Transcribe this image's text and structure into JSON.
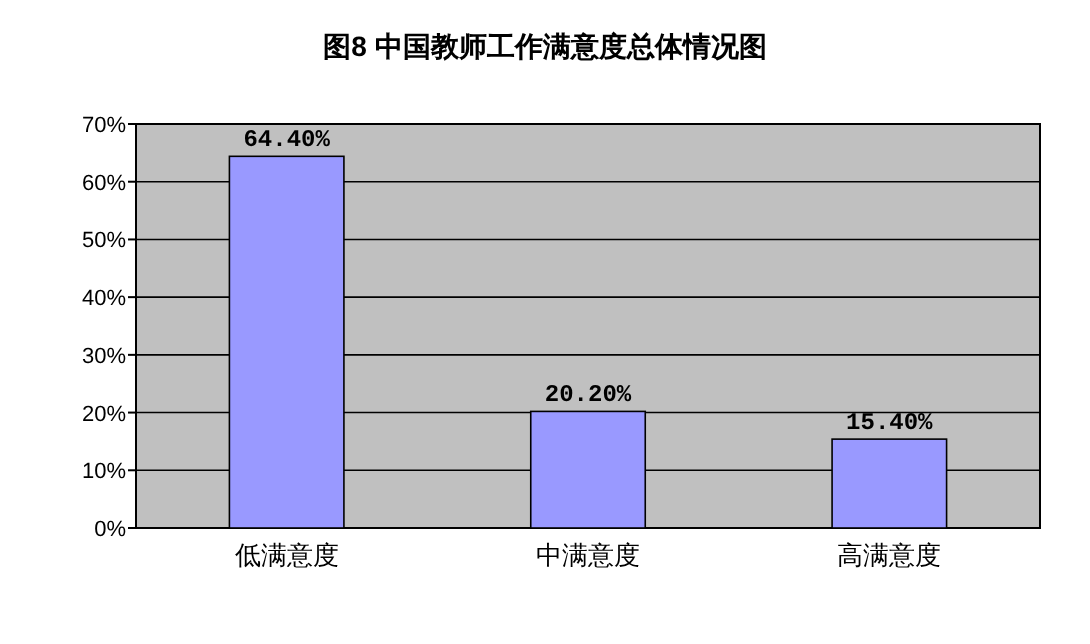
{
  "chart_data": {
    "type": "bar",
    "title": "图8  中国教师工作满意度总体情况图",
    "categories": [
      "低满意度",
      "中满意度",
      "高满意度"
    ],
    "values": [
      64.4,
      20.2,
      15.4
    ],
    "value_labels": [
      "64.40%",
      "20.20%",
      "15.40%"
    ],
    "color": "#9999ff",
    "ylim": [
      0,
      70
    ],
    "yticks": [
      {
        "value": 0,
        "label": "0%"
      },
      {
        "value": 10,
        "label": "10%"
      },
      {
        "value": 20,
        "label": "20%"
      },
      {
        "value": 30,
        "label": "30%"
      },
      {
        "value": 40,
        "label": "40%"
      },
      {
        "value": 50,
        "label": "50%"
      },
      {
        "value": 60,
        "label": "60%"
      },
      {
        "value": 70,
        "label": "70%"
      }
    ],
    "grid": "y"
  }
}
